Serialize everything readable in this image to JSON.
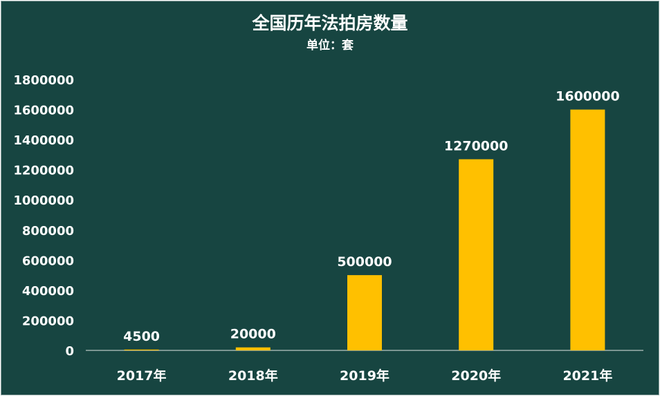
{
  "colors": {
    "background": "#174541",
    "bar": "#ffc000",
    "text": "#ffffff",
    "axis": "#b8c6c4"
  },
  "chart_data": {
    "type": "bar",
    "title": "全国历年法拍房数量",
    "subtitle": "单位：套",
    "categories": [
      "2017年",
      "2018年",
      "2019年",
      "2020年",
      "2021年"
    ],
    "series": [
      {
        "values": [
          4500,
          20000,
          500000,
          1270000,
          1600000
        ]
      }
    ],
    "data_labels": [
      "4500",
      "20000",
      "500000",
      "1270000",
      "1600000"
    ],
    "y_ticks": [
      "0",
      "200000",
      "400000",
      "600000",
      "800000",
      "1000000",
      "1200000",
      "1400000",
      "1600000",
      "1800000"
    ],
    "ylim": [
      0,
      1800000
    ],
    "grid": false,
    "legend": "none"
  }
}
